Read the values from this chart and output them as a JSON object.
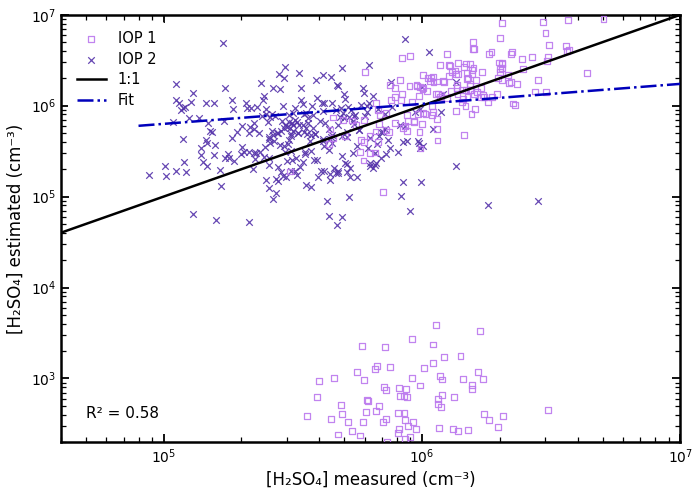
{
  "title": "",
  "xlabel": "[H₂SO₄] measured (cm⁻³)",
  "ylabel": "[H₂SO₄] estimated (cm⁻³)",
  "xlim": [
    40000.0,
    10000000.0
  ],
  "ylim": [
    200.0,
    10000000.0
  ],
  "r2_text": "R² = 0.58",
  "iop1_color": "#bb77ee",
  "iop2_color": "#5533aa",
  "line11_color": "#000000",
  "fit_color": "#0000bb",
  "background_color": "#ffffff",
  "legend_labels": [
    "IOP 1",
    "IOP 2",
    "1:1",
    "Fit"
  ],
  "fit_slope_loglog": 0.22,
  "fit_intercept_loglog": 4.7,
  "seed_iop1": 42,
  "seed_iop2": 7
}
